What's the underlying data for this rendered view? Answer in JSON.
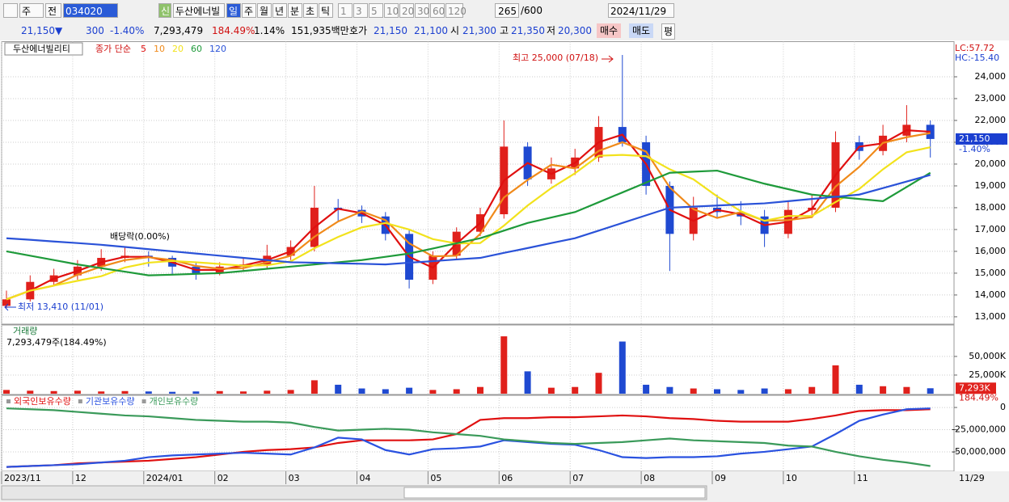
{
  "toolbar": {
    "market": "주",
    "prev": "전",
    "code": "034020",
    "new": "신",
    "name": "두산에너빌",
    "periods": [
      "일",
      "주",
      "월",
      "년",
      "분",
      "초",
      "틱"
    ],
    "intervals": [
      "1",
      "3",
      "5",
      "10",
      "20",
      "30",
      "60",
      "120"
    ],
    "count": "265",
    "max": "/600",
    "date": "2024/11/29"
  },
  "quote": {
    "price": "21,150▼",
    "change": "300",
    "rate": "-1.40%",
    "volume": "7,293,479",
    "vol_ratio": "184.49%",
    "turnover": "1.14%",
    "amount": "151,935백만",
    "ask_label": "호가",
    "ask": "21,150",
    "bid": "21,100",
    "open_label": "시",
    "open": "21,300",
    "high_label": "고",
    "high": "21,350",
    "low_label": "저",
    "low": "20,300",
    "buy": "매수",
    "sell": "매도",
    "avg": "평"
  },
  "x_end_label": "11/29",
  "chart_data": [
    {
      "type": "candlestick",
      "title": "두산에너빌리티",
      "legend_title": "종가 단순",
      "lc": "LC:57.72",
      "hc": "HC:-15.40",
      "up_color": "#e0201b",
      "down_color": "#1f49d1",
      "categories": [
        "2023/11",
        null,
        null,
        "12",
        null,
        null,
        "2024/01",
        null,
        null,
        "02",
        null,
        null,
        "03",
        null,
        null,
        "04",
        null,
        null,
        "05",
        null,
        null,
        "06",
        null,
        null,
        "07",
        null,
        null,
        "08",
        null,
        null,
        "09",
        null,
        null,
        "10",
        null,
        null,
        "11",
        null,
        null,
        null
      ],
      "open": [
        13500,
        13800,
        14600,
        14900,
        15300,
        15700,
        15800,
        15700,
        15300,
        15000,
        15300,
        15400,
        15800,
        16200,
        18000,
        17900,
        17600,
        16800,
        14700,
        15800,
        16900,
        17700,
        20800,
        19300,
        19800,
        20300,
        21700,
        21000,
        19000,
        16800,
        18000,
        17800,
        17600,
        16800,
        17900,
        18000,
        21000,
        20600,
        21300,
        21800
      ],
      "high": [
        14200,
        14900,
        15200,
        15600,
        16100,
        16200,
        16000,
        15800,
        15500,
        15500,
        15700,
        16300,
        16500,
        19000,
        18400,
        18100,
        17800,
        17000,
        16000,
        17100,
        18000,
        22000,
        21000,
        20300,
        20700,
        22200,
        25000,
        21300,
        19200,
        18500,
        18600,
        18300,
        17900,
        18300,
        18600,
        21500,
        21300,
        21800,
        22700,
        22000
      ],
      "low": [
        13410,
        13700,
        14400,
        14700,
        15100,
        15500,
        15300,
        14900,
        14700,
        14900,
        15100,
        15200,
        15600,
        16000,
        17400,
        17300,
        16500,
        14300,
        14500,
        15600,
        16700,
        17500,
        19000,
        19100,
        19500,
        20100,
        20800,
        18600,
        15100,
        16500,
        17500,
        17200,
        16200,
        16600,
        17600,
        17800,
        20200,
        20400,
        21000,
        20300
      ],
      "close": [
        13800,
        14600,
        14900,
        15300,
        15700,
        15800,
        15700,
        15300,
        15000,
        15300,
        15400,
        15800,
        16200,
        18000,
        17900,
        17600,
        16800,
        14700,
        15800,
        16900,
        17700,
        20800,
        19300,
        19800,
        20300,
        21700,
        21000,
        19000,
        16800,
        18000,
        17800,
        17600,
        16800,
        17900,
        18000,
        21000,
        20600,
        21300,
        21800,
        21150
      ],
      "series": [
        {
          "name": "5",
          "color": "#e01010",
          "values": [
            13800,
            14200,
            14750,
            15100,
            15500,
            15750,
            15750,
            15500,
            15150,
            15150,
            15350,
            15600,
            16000,
            17100,
            17950,
            17750,
            17200,
            15750,
            15250,
            16350,
            17300,
            19250,
            20050,
            19550,
            20050,
            21000,
            21350,
            20000,
            17900,
            17400,
            17900,
            17700,
            17200,
            17350,
            17950,
            19500,
            20800,
            20950,
            21550,
            21480
          ]
        },
        {
          "name": "10",
          "color": "#f08a1a",
          "values": [
            13800,
            14200,
            14430,
            14930,
            15300,
            15600,
            15730,
            15600,
            15330,
            15200,
            15230,
            15500,
            15800,
            16670,
            17370,
            17830,
            17430,
            16370,
            15770,
            15800,
            16800,
            18470,
            19270,
            19970,
            19800,
            20600,
            21000,
            20570,
            18930,
            17930,
            17530,
            17800,
            17400,
            17430,
            17570,
            18970,
            19870,
            20970,
            21230,
            21420
          ]
        },
        {
          "name": "20",
          "color": "#f2e21c",
          "values": [
            13800,
            14200,
            14430,
            14650,
            14860,
            15260,
            15480,
            15560,
            15500,
            15420,
            15340,
            15360,
            15540,
            16140,
            16660,
            17100,
            17300,
            17000,
            16560,
            16360,
            16380,
            17180,
            18100,
            18900,
            19580,
            20380,
            20420,
            20360,
            19760,
            19300,
            18520,
            17840,
            17400,
            17620,
            17620,
            18260,
            18860,
            19760,
            20540,
            20770
          ]
        },
        {
          "name": "60",
          "color": "#1e9a3a",
          "values": [
            16000,
            15800,
            15600,
            15400,
            15230,
            15070,
            14900,
            14930,
            14970,
            15000,
            15100,
            15200,
            15300,
            15400,
            15500,
            15600,
            15750,
            15900,
            16130,
            16370,
            16600,
            16950,
            17300,
            17550,
            17800,
            18250,
            18700,
            19150,
            19600,
            19650,
            19700,
            19400,
            19100,
            18850,
            18600,
            18500,
            18400,
            18300,
            18950,
            19600
          ]
        },
        {
          "name": "120",
          "color": "#2a52d8",
          "values": [
            16600,
            16530,
            16450,
            16380,
            16300,
            16200,
            16100,
            16000,
            15900,
            15800,
            15700,
            15600,
            15500,
            15480,
            15450,
            15430,
            15400,
            15480,
            15550,
            15630,
            15700,
            15930,
            16150,
            16380,
            16600,
            16950,
            17300,
            17650,
            18000,
            18050,
            18100,
            18150,
            18200,
            18300,
            18400,
            18500,
            18600,
            18900,
            19200,
            19500
          ]
        }
      ],
      "ylim": [
        12700,
        25500
      ],
      "yticks": [
        {
          "value": 13000,
          "label": "13,000"
        },
        {
          "value": 14000,
          "label": "14,000"
        },
        {
          "value": 15000,
          "label": "15,000"
        },
        {
          "value": 16000,
          "label": "16,000"
        },
        {
          "value": 17000,
          "label": "17,000"
        },
        {
          "value": 18000,
          "label": "18,000"
        },
        {
          "value": 19000,
          "label": "19,000"
        },
        {
          "value": 20000,
          "label": "20,000"
        },
        {
          "value": 21000,
          "label": "21,000"
        },
        {
          "value": 22000,
          "label": "22,000"
        },
        {
          "value": 23000,
          "label": "23,000"
        },
        {
          "value": 24000,
          "label": "24,000"
        }
      ],
      "last": {
        "value": 21150,
        "label": "21,150"
      },
      "last_change": "-1.40%",
      "annotations": [
        "최고 25,000 (07/18)",
        "최저 13,410 (11/01)",
        "배당락(0.00%)"
      ],
      "grid": true
    },
    {
      "type": "bar",
      "title": "거래량",
      "subtitle": "7,293,479주(184.49%)",
      "values": [
        5000,
        4000,
        3500,
        4000,
        3000,
        3500,
        3000,
        2500,
        3000,
        3500,
        3000,
        4000,
        5000,
        18000,
        12000,
        7000,
        6000,
        8000,
        5000,
        6000,
        9000,
        77000,
        30000,
        8000,
        9000,
        28000,
        70000,
        12000,
        9000,
        7000,
        6000,
        5000,
        7000,
        6000,
        9000,
        38000,
        12000,
        10000,
        9000,
        7293
      ],
      "ylim": [
        0,
        89000
      ],
      "yticks": [
        {
          "value": 25000,
          "label": "25,000K"
        },
        {
          "value": 50000,
          "label": "50,000K"
        }
      ],
      "last": {
        "value": 7293,
        "label": "7,293K"
      },
      "last_ratio": "184.49%",
      "grid": true
    },
    {
      "type": "line",
      "series": [
        {
          "name": "외국인보유수량",
          "color": "#e01010",
          "values": [
            -67000000,
            -66000000,
            -65000000,
            -63000000,
            -62000000,
            -61000000,
            -60000000,
            -58000000,
            -56000000,
            -53000000,
            -50000000,
            -48000000,
            -47000000,
            -45000000,
            -40000000,
            -37000000,
            -37000000,
            -37000000,
            -36000000,
            -30000000,
            -14000000,
            -12000000,
            -12000000,
            -11000000,
            -11000000,
            -10000000,
            -9000000,
            -10000000,
            -12000000,
            -13000000,
            -15000000,
            -16000000,
            -16000000,
            -16000000,
            -13000000,
            -9000000,
            -4000000,
            -3000000,
            -3000000,
            -2000000
          ]
        },
        {
          "name": "기관보유수량",
          "color": "#2a52e0",
          "values": [
            -67000000,
            -66000000,
            -65000000,
            -64000000,
            -62000000,
            -60000000,
            -56000000,
            -54000000,
            -53000000,
            -52000000,
            -51000000,
            -52000000,
            -53000000,
            -45000000,
            -34000000,
            -36000000,
            -48000000,
            -53000000,
            -47000000,
            -46000000,
            -44000000,
            -37000000,
            -39000000,
            -41000000,
            -42000000,
            -48000000,
            -56000000,
            -57000000,
            -56000000,
            -56000000,
            -55000000,
            -52000000,
            -50000000,
            -47000000,
            -44000000,
            -30000000,
            -15000000,
            -8000000,
            -2000000,
            -1000000
          ]
        },
        {
          "name": "개인보유수량",
          "color": "#3a9a5a",
          "values": [
            -1000000,
            -2000000,
            -3000000,
            -5000000,
            -7000000,
            -9000000,
            -10000000,
            -12000000,
            -14000000,
            -15000000,
            -16000000,
            -16000000,
            -17000000,
            -22000000,
            -26000000,
            -25000000,
            -24000000,
            -25000000,
            -28000000,
            -30000000,
            -32000000,
            -36000000,
            -38000000,
            -40000000,
            -41000000,
            -40000000,
            -39000000,
            -37000000,
            -35000000,
            -37000000,
            -38000000,
            -39000000,
            -40000000,
            -43000000,
            -44000000,
            -50000000,
            -55000000,
            -59000000,
            -62000000,
            -66000000
          ]
        }
      ],
      "ylim": [
        -71000000,
        11000000
      ],
      "yticks": [
        0,
        {
          "value": -25000000,
          "label": "-25,000,000"
        },
        {
          "value": -50000000,
          "label": "-50,000,000"
        }
      ],
      "grid": true
    }
  ]
}
